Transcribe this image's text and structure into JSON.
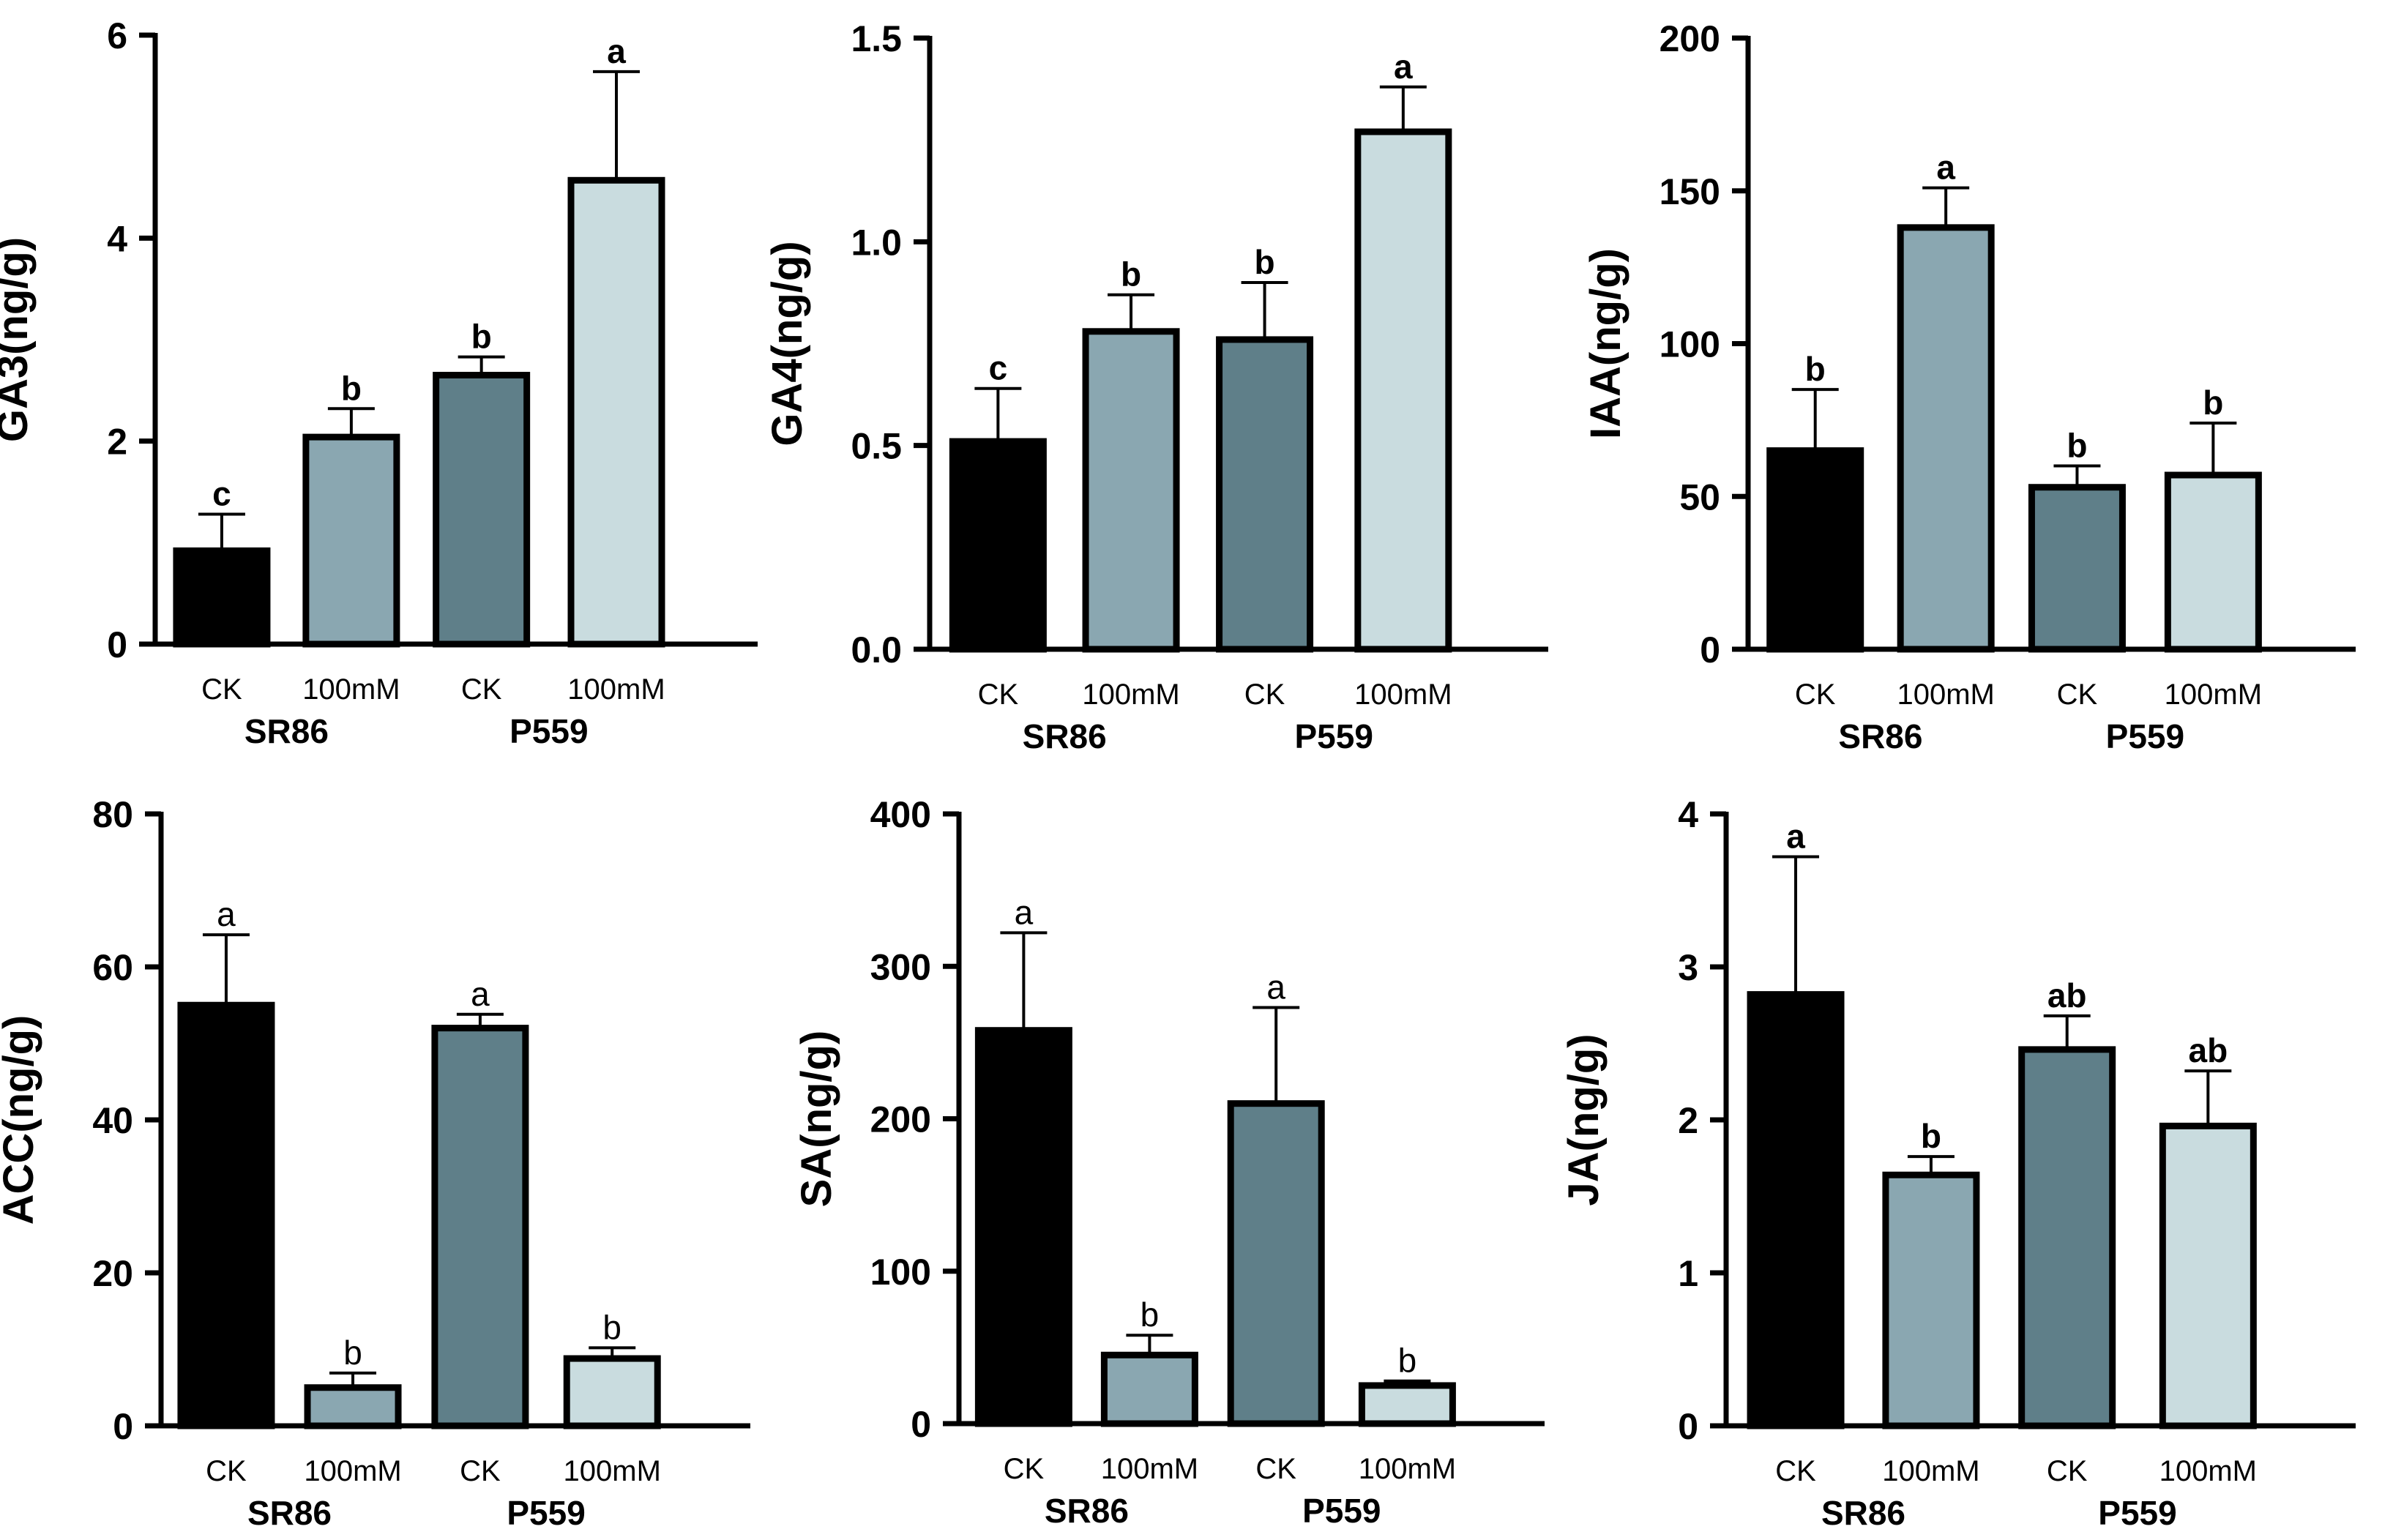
{
  "colors": {
    "bars": [
      "#000000",
      "#8aa7b1",
      "#5f7f89",
      "#c9dcdf"
    ],
    "outline": "#000000",
    "axis": "#000000"
  },
  "chart_data": [
    {
      "type": "bar",
      "ylabel": "GA3(ng/g)",
      "ylim": [
        0,
        6
      ],
      "yticks": [
        "0",
        "2",
        "4",
        "6"
      ],
      "yticks_values": [
        0,
        2,
        4,
        6
      ],
      "categories": [
        "CK",
        "100mM",
        "CK",
        "100mM"
      ],
      "groups": [
        "SR86",
        "P559"
      ],
      "values": [
        0.92,
        2.04,
        2.65,
        4.57
      ],
      "errors": [
        0.36,
        0.28,
        0.18,
        1.07
      ],
      "letters": [
        "c",
        "b",
        "b",
        "a"
      ],
      "letter_weight": "bold"
    },
    {
      "type": "bar",
      "ylabel": "GA4(ng/g)",
      "ylim": [
        0,
        1.5
      ],
      "yticks": [
        "0.0",
        "0.5",
        "1.0",
        "1.5"
      ],
      "yticks_values": [
        0,
        0.5,
        1.0,
        1.5
      ],
      "categories": [
        "CK",
        "100mM",
        "CK",
        "100mM"
      ],
      "groups": [
        "SR86",
        "P559"
      ],
      "values": [
        0.51,
        0.78,
        0.76,
        1.27
      ],
      "errors": [
        0.13,
        0.09,
        0.14,
        0.11
      ],
      "letters": [
        "c",
        "b",
        "b",
        "a"
      ],
      "letter_weight": "bold"
    },
    {
      "type": "bar",
      "ylabel": "IAA(ng/g)",
      "ylim": [
        0,
        200
      ],
      "yticks": [
        "0",
        "50",
        "100",
        "150",
        "200"
      ],
      "yticks_values": [
        0,
        50,
        100,
        150,
        200
      ],
      "categories": [
        "CK",
        "100mM",
        "CK",
        "100mM"
      ],
      "groups": [
        "SR86",
        "P559"
      ],
      "values": [
        65,
        138,
        53,
        57
      ],
      "errors": [
        20,
        13,
        7,
        17
      ],
      "letters": [
        "b",
        "a",
        "b",
        "b"
      ],
      "letter_weight": "bold"
    },
    {
      "type": "bar",
      "ylabel": "ACC(ng/g)",
      "ylim": [
        0,
        80
      ],
      "yticks": [
        "0",
        "20",
        "40",
        "60",
        "80"
      ],
      "yticks_values": [
        0,
        20,
        40,
        60,
        80
      ],
      "categories": [
        "CK",
        "100mM",
        "CK",
        "100mM"
      ],
      "groups": [
        "SR86",
        "P559"
      ],
      "values": [
        55,
        5,
        52,
        8.8
      ],
      "errors": [
        9.2,
        1.9,
        1.8,
        1.4
      ],
      "letters": [
        "a",
        "b",
        "a",
        "b"
      ],
      "letter_weight": "normal"
    },
    {
      "type": "bar",
      "ylabel": "SA(ng/g)",
      "ylim": [
        0,
        400
      ],
      "yticks": [
        "0",
        "100",
        "200",
        "300",
        "400"
      ],
      "yticks_values": [
        0,
        100,
        200,
        300,
        400
      ],
      "categories": [
        "CK",
        "100mM",
        "CK",
        "100mM"
      ],
      "groups": [
        "SR86",
        "P559"
      ],
      "values": [
        258,
        45,
        210,
        25
      ],
      "errors": [
        64,
        13,
        63,
        3
      ],
      "letters": [
        "a",
        "b",
        "a",
        "b"
      ],
      "letter_weight": "normal"
    },
    {
      "type": "bar",
      "ylabel": "JA(ng/g)",
      "ylim": [
        0,
        4
      ],
      "yticks": [
        "0",
        "1",
        "2",
        "3",
        "4"
      ],
      "yticks_values": [
        0,
        1,
        2,
        3,
        4
      ],
      "categories": [
        "CK",
        "100mM",
        "CK",
        "100mM"
      ],
      "groups": [
        "SR86",
        "P559"
      ],
      "values": [
        2.82,
        1.64,
        2.46,
        1.96
      ],
      "errors": [
        0.9,
        0.12,
        0.22,
        0.36
      ],
      "letters": [
        "a",
        "b",
        "ab",
        "ab"
      ],
      "letter_weight": "bold"
    }
  ]
}
